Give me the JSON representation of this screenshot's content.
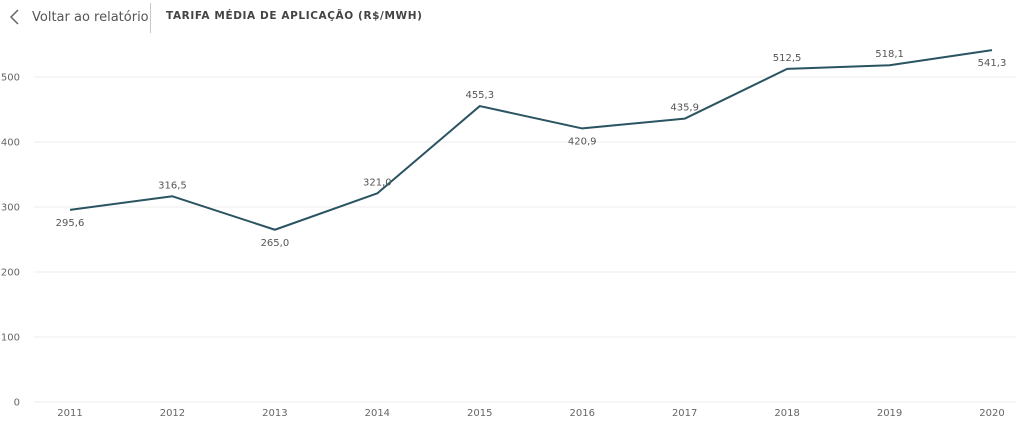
{
  "header": {
    "back_label": "Voltar ao relatório",
    "chart_title": "TARIFA MÉDIA DE APLICAÇÃO (R$/MWH)"
  },
  "icons": {
    "back": "chevron-left-icon"
  },
  "colors": {
    "line": "#2a5462",
    "grid": "#ececec",
    "axis_text": "#666666"
  },
  "chart_data": {
    "type": "line",
    "title": "TARIFA MÉDIA DE APLICAÇÃO (R$/MWH)",
    "categories": [
      "2011",
      "2012",
      "2013",
      "2014",
      "2015",
      "2016",
      "2017",
      "2018",
      "2019",
      "2020"
    ],
    "series": [
      {
        "values": [
          295.6,
          316.5,
          265.0,
          321.0,
          455.3,
          420.9,
          435.9,
          512.5,
          518.1,
          541.3
        ]
      }
    ],
    "data_labels": [
      "295,6",
      "316,5",
      "265,0",
      "321,0",
      "455,3",
      "420,9",
      "435,9",
      "512,5",
      "518,1",
      "541,3"
    ],
    "yticks": [
      0,
      100,
      200,
      300,
      400,
      500
    ],
    "ylim": [
      0,
      560
    ],
    "grid": true,
    "xlabel": "",
    "ylabel": ""
  }
}
